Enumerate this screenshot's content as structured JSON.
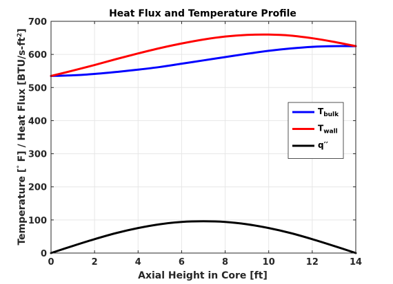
{
  "chart_data": {
    "type": "line",
    "title": "Heat Flux and Temperature Profile",
    "xlabel": "Axial Height in Core [ft]",
    "ylabel": {
      "part1": "Temperature [",
      "degree": "°",
      "part2": " F] / Heat Flux [BTU/s-ft",
      "sup": "2",
      "part3": "]"
    },
    "xlim": [
      0,
      14
    ],
    "ylim": [
      0,
      700
    ],
    "xticks": [
      0,
      2,
      4,
      6,
      8,
      10,
      12,
      14
    ],
    "yticks": [
      0,
      100,
      200,
      300,
      400,
      500,
      600,
      700
    ],
    "grid": true,
    "legend_position": "right",
    "x": [
      0,
      1,
      2,
      3,
      4,
      5,
      6,
      7,
      8,
      9,
      10,
      11,
      12,
      13,
      14
    ],
    "series": [
      {
        "name": "T",
        "name_sub": "bulk",
        "color": "#0000ff",
        "values": [
          535,
          537,
          541,
          547,
          554,
          562,
          572,
          582,
          592,
          602,
          611,
          618,
          623,
          625,
          625
        ]
      },
      {
        "name": "T",
        "name_sub": "wall",
        "color": "#ff0000",
        "values": [
          535,
          551,
          568,
          586,
          603,
          619,
          633,
          645,
          654,
          659,
          660,
          657,
          649,
          638,
          625
        ]
      },
      {
        "name": "q′′",
        "name_sub": "",
        "color": "#000000",
        "values": [
          0,
          21.5,
          42,
          60.5,
          75.5,
          87,
          94,
          96,
          94,
          87,
          75.5,
          60.5,
          42,
          21.5,
          0
        ]
      }
    ]
  }
}
